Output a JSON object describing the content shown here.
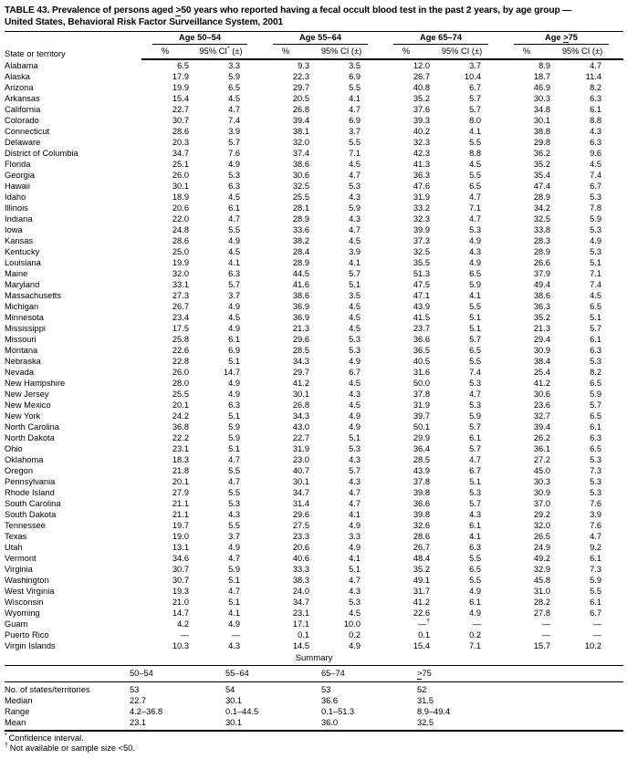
{
  "title": {
    "line1": "TABLE 43. Prevalence of persons aged ≥50 years who reported having a fecal occult blood test in the past 2 years, by age group —",
    "line2": "United States, Behavioral Risk Factor Surveillance System, 2001"
  },
  "table": {
    "state_col_header": "State or territory",
    "age_groups": [
      {
        "label": "Age 50–54",
        "pct_header": "%",
        "ci_header": "95% CI* (±)"
      },
      {
        "label": "Age 55–64",
        "pct_header": "%",
        "ci_header": "95% CI (±)"
      },
      {
        "label": "Age 65–74",
        "pct_header": "%",
        "ci_header": "95% CI (±)"
      },
      {
        "label": "Age ≥75",
        "pct_header": "%",
        "ci_header": "95% CI (±)"
      }
    ],
    "rows": [
      {
        "state": "Alabama",
        "values": [
          "6.5",
          "3.3",
          "9.3",
          "3.5",
          "12.0",
          "3.7",
          "8.9",
          "4.7"
        ]
      },
      {
        "state": "Alaska",
        "values": [
          "17.9",
          "5.9",
          "22.3",
          "6.9",
          "26.7",
          "10.4",
          "18.7",
          "11.4"
        ]
      },
      {
        "state": "Arizona",
        "values": [
          "19.9",
          "6.5",
          "29.7",
          "5.5",
          "40.8",
          "6.7",
          "46.9",
          "8.2"
        ]
      },
      {
        "state": "Arkansas",
        "values": [
          "15.4",
          "4.5",
          "20.5",
          "4.1",
          "35.2",
          "5.7",
          "30.3",
          "6.3"
        ]
      },
      {
        "state": "California",
        "values": [
          "22.7",
          "4.7",
          "26.8",
          "4.7",
          "37.6",
          "5.7",
          "34.8",
          "6.1"
        ]
      },
      {
        "state": "Colorado",
        "values": [
          "30.7",
          "7.4",
          "39.4",
          "6.9",
          "39.3",
          "8.0",
          "30.1",
          "8.8"
        ]
      },
      {
        "state": "Connecticut",
        "values": [
          "28.6",
          "3.9",
          "38.1",
          "3.7",
          "40.2",
          "4.1",
          "38.8",
          "4.3"
        ]
      },
      {
        "state": "Delaware",
        "values": [
          "20.3",
          "5.7",
          "32.0",
          "5.5",
          "32.3",
          "5.5",
          "29.8",
          "6.3"
        ]
      },
      {
        "state": "District of Columbia",
        "values": [
          "34.7",
          "7.6",
          "37.4",
          "7.1",
          "42.3",
          "8.8",
          "36.2",
          "9.6"
        ]
      },
      {
        "state": "Florida",
        "values": [
          "25.1",
          "4.9",
          "38.6",
          "4.5",
          "41.3",
          "4.5",
          "35.2",
          "4.5"
        ]
      },
      {
        "state": "Georgia",
        "values": [
          "26.0",
          "5.3",
          "30.6",
          "4.7",
          "36.3",
          "5.5",
          "35.4",
          "7.4"
        ]
      },
      {
        "state": "Hawaii",
        "values": [
          "30.1",
          "6.3",
          "32.5",
          "5.3",
          "47.6",
          "6.5",
          "47.4",
          "6.7"
        ]
      },
      {
        "state": "Idaho",
        "values": [
          "18.9",
          "4.5",
          "25.5",
          "4.3",
          "31.9",
          "4.7",
          "28.9",
          "5.3"
        ]
      },
      {
        "state": "Illinois",
        "values": [
          "20.6",
          "6.1",
          "28.1",
          "5.9",
          "33.2",
          "7.1",
          "34.2",
          "7.8"
        ]
      },
      {
        "state": "Indiana",
        "values": [
          "22.0",
          "4.7",
          "28.9",
          "4.3",
          "32.3",
          "4.7",
          "32.5",
          "5.9"
        ]
      },
      {
        "state": "Iowa",
        "values": [
          "24.8",
          "5.5",
          "33.6",
          "4.7",
          "39.9",
          "5.3",
          "33.8",
          "5.3"
        ]
      },
      {
        "state": "Kansas",
        "values": [
          "28.6",
          "4.9",
          "38.2",
          "4.5",
          "37.3",
          "4.9",
          "28.3",
          "4.9"
        ]
      },
      {
        "state": "Kentucky",
        "values": [
          "25.0",
          "4.5",
          "28.4",
          "3.9",
          "32.5",
          "4.3",
          "28.9",
          "5.3"
        ]
      },
      {
        "state": "Louisiana",
        "values": [
          "19.9",
          "4.1",
          "28.9",
          "4.1",
          "35.5",
          "4.9",
          "26.6",
          "5.1"
        ]
      },
      {
        "state": "Maine",
        "values": [
          "32.0",
          "6.3",
          "44.5",
          "5.7",
          "51.3",
          "6.5",
          "37.9",
          "7.1"
        ]
      },
      {
        "state": "Maryland",
        "values": [
          "33.1",
          "5.7",
          "41.6",
          "5.1",
          "47.5",
          "5.9",
          "49.4",
          "7.4"
        ]
      },
      {
        "state": "Massachusetts",
        "values": [
          "27.3",
          "3.7",
          "38.6",
          "3.5",
          "47.1",
          "4.1",
          "38.6",
          "4.5"
        ]
      },
      {
        "state": "Michigan",
        "values": [
          "26.7",
          "4.9",
          "36.9",
          "4.5",
          "43.9",
          "5.5",
          "36.3",
          "6.5"
        ]
      },
      {
        "state": "Minnesota",
        "values": [
          "23.4",
          "4.5",
          "36.9",
          "4.5",
          "41.5",
          "5.1",
          "35.2",
          "5.1"
        ]
      },
      {
        "state": "Mississippi",
        "values": [
          "17.5",
          "4.9",
          "21.3",
          "4.5",
          "23.7",
          "5.1",
          "21.3",
          "5.7"
        ]
      },
      {
        "state": "Missouri",
        "values": [
          "25.8",
          "6.1",
          "29.6",
          "5.3",
          "36.6",
          "5.7",
          "29.4",
          "6.1"
        ]
      },
      {
        "state": "Montana",
        "values": [
          "22.6",
          "6.9",
          "28.5",
          "5.3",
          "36.5",
          "6.5",
          "30.9",
          "6.3"
        ]
      },
      {
        "state": "Nebraska",
        "values": [
          "22.8",
          "5.1",
          "34.3",
          "4.9",
          "40.5",
          "5.5",
          "38.4",
          "5.3"
        ]
      },
      {
        "state": "Nevada",
        "values": [
          "26.0",
          "14.7",
          "29.7",
          "6.7",
          "31.6",
          "7.4",
          "25.4",
          "8.2"
        ]
      },
      {
        "state": "New Hampshire",
        "values": [
          "28.0",
          "4.9",
          "41.2",
          "4.5",
          "50.0",
          "5.3",
          "41.2",
          "6.5"
        ]
      },
      {
        "state": "New Jersey",
        "values": [
          "25.5",
          "4.9",
          "30.1",
          "4.3",
          "37.8",
          "4.7",
          "30.6",
          "5.9"
        ]
      },
      {
        "state": "New Mexico",
        "values": [
          "20.1",
          "6.3",
          "26.8",
          "4.5",
          "31.9",
          "5.3",
          "23.6",
          "5.7"
        ]
      },
      {
        "state": "New York",
        "values": [
          "24.2",
          "5.1",
          "34.3",
          "4.9",
          "39.7",
          "5.9",
          "32.7",
          "6.5"
        ]
      },
      {
        "state": "North Carolina",
        "values": [
          "36.8",
          "5.9",
          "43.0",
          "4.9",
          "50.1",
          "5.7",
          "39.4",
          "6.1"
        ]
      },
      {
        "state": "North Dakota",
        "values": [
          "22.2",
          "5.9",
          "22.7",
          "5.1",
          "29.9",
          "6.1",
          "26.2",
          "6.3"
        ]
      },
      {
        "state": "Ohio",
        "values": [
          "23.1",
          "5.1",
          "31.9",
          "5.3",
          "36.4",
          "5.7",
          "36.1",
          "6.5"
        ]
      },
      {
        "state": "Oklahoma",
        "values": [
          "18.3",
          "4.7",
          "23.0",
          "4.3",
          "28.5",
          "4.7",
          "27.2",
          "5.3"
        ]
      },
      {
        "state": "Oregon",
        "values": [
          "21.8",
          "5.5",
          "40.7",
          "5.7",
          "43.9",
          "6.7",
          "45.0",
          "7.3"
        ]
      },
      {
        "state": "Pennsylvania",
        "values": [
          "20.1",
          "4.7",
          "30.1",
          "4.3",
          "37.8",
          "5.1",
          "30.3",
          "5.3"
        ]
      },
      {
        "state": "Rhode Island",
        "values": [
          "27.9",
          "5.5",
          "34.7",
          "4.7",
          "39.8",
          "5.3",
          "30.9",
          "5.3"
        ]
      },
      {
        "state": "South Carolina",
        "values": [
          "21.1",
          "5.3",
          "31.4",
          "4.7",
          "36.6",
          "5.7",
          "37.0",
          "7.6"
        ]
      },
      {
        "state": "South Dakota",
        "values": [
          "21.1",
          "4.3",
          "29.6",
          "4.1",
          "39.8",
          "4.3",
          "29.2",
          "3.9"
        ]
      },
      {
        "state": "Tennessee",
        "values": [
          "19.7",
          "5.5",
          "27.5",
          "4.9",
          "32.6",
          "6.1",
          "32.0",
          "7.6"
        ]
      },
      {
        "state": "Texas",
        "values": [
          "19.0",
          "3.7",
          "23.3",
          "3.3",
          "28.6",
          "4.1",
          "26.5",
          "4.7"
        ]
      },
      {
        "state": "Utah",
        "values": [
          "13.1",
          "4.9",
          "20.6",
          "4.9",
          "26.7",
          "6.3",
          "24.9",
          "9.2"
        ]
      },
      {
        "state": "Vermont",
        "values": [
          "34.6",
          "4.7",
          "40.6",
          "4.1",
          "48.4",
          "5.5",
          "49.2",
          "6.1"
        ]
      },
      {
        "state": "Virginia",
        "values": [
          "30.7",
          "5.9",
          "33.3",
          "5.1",
          "35.2",
          "6.5",
          "32.9",
          "7.3"
        ]
      },
      {
        "state": "Washington",
        "values": [
          "30.7",
          "5.1",
          "38.3",
          "4.7",
          "49.1",
          "5.5",
          "45.8",
          "5.9"
        ]
      },
      {
        "state": "West Virginia",
        "values": [
          "19.3",
          "4.7",
          "24.0",
          "4.3",
          "31.7",
          "4.9",
          "31.0",
          "5.5"
        ]
      },
      {
        "state": "Wisconsin",
        "values": [
          "21.0",
          "5.1",
          "34.7",
          "5.3",
          "41.2",
          "6.1",
          "28.2",
          "6.1"
        ]
      },
      {
        "state": "Wyoming",
        "values": [
          "14.7",
          "4.1",
          "23.1",
          "4.5",
          "22.6",
          "4.9",
          "27.8",
          "6.7"
        ]
      },
      {
        "state": "Guam",
        "values": [
          "4.2",
          "4.9",
          "17.1",
          "10.0",
          "—†",
          "—",
          "—",
          "—"
        ]
      },
      {
        "state": "Puerto Rico",
        "values": [
          "—",
          "—",
          "0.1",
          "0.2",
          "0.1",
          "0.2",
          "—",
          "—"
        ]
      },
      {
        "state": "Virgin Islands",
        "values": [
          "10.3",
          "4.3",
          "14.5",
          "4.9",
          "15.4",
          "7.1",
          "15.7",
          "10.2"
        ]
      }
    ]
  },
  "summary": {
    "heading": "Summary",
    "col_headers": [
      "50–54",
      "55–64",
      "65–74",
      "≥75"
    ],
    "rows": [
      {
        "label": "No. of states/territories",
        "values": [
          "53",
          "54",
          "53",
          "52"
        ]
      },
      {
        "label": "Median",
        "values": [
          "22.7",
          "30.1",
          "36.6",
          "31.5"
        ]
      },
      {
        "label": "Range",
        "values": [
          "4.2–36.8",
          "0.1–44.5",
          "0.1–51.3",
          "8.9–49.4"
        ]
      },
      {
        "label": "Mean",
        "values": [
          "23.1",
          "30.1",
          "36.0",
          "32.5"
        ]
      }
    ]
  },
  "footnotes": [
    {
      "symbol": "*",
      "text": "Confidence interval."
    },
    {
      "symbol": "†",
      "text": "Not available or sample size <50."
    }
  ]
}
